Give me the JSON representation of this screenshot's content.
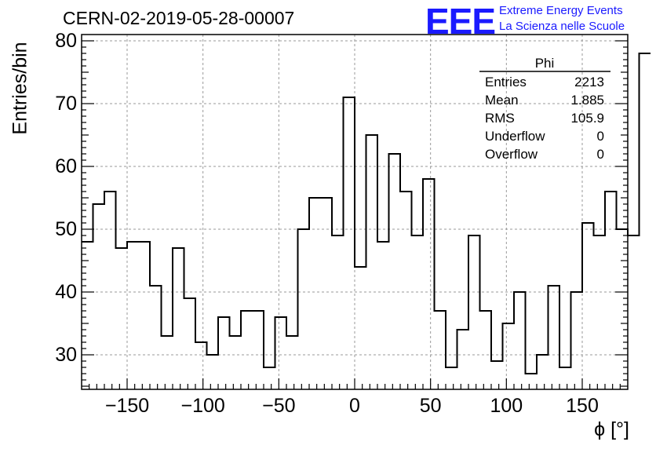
{
  "header": {
    "title": "CERN-02-2019-05-28-00007",
    "logo": "EEE",
    "logo_line1": "Extreme Energy Events",
    "logo_line2": "La Scienza nelle Scuole"
  },
  "stats": {
    "title": "Phi",
    "rows": [
      {
        "label": "Entries",
        "value": "2213"
      },
      {
        "label": "Mean",
        "value": "1.885"
      },
      {
        "label": "RMS",
        "value": "105.9"
      },
      {
        "label": "Underflow",
        "value": "0"
      },
      {
        "label": "Overflow",
        "value": "0"
      }
    ]
  },
  "chart_data": {
    "type": "bar",
    "subtype": "histogram",
    "title": "CERN-02-2019-05-28-00007",
    "xlabel": "ϕ [°]",
    "ylabel": "Entries/bin",
    "xlim": [
      -180,
      180
    ],
    "ylim": [
      24.5,
      81
    ],
    "bin_width": 7.5,
    "bin_edges_start": -180,
    "values": [
      48,
      54,
      56,
      47,
      48,
      48,
      41,
      33,
      47,
      39,
      32,
      30,
      36,
      33,
      37,
      37,
      28,
      36,
      33,
      50,
      55,
      55,
      49,
      71,
      44,
      65,
      48,
      62,
      56,
      49,
      58,
      37,
      28,
      34,
      49,
      37,
      29,
      35,
      40,
      27,
      30,
      41,
      28,
      40,
      51,
      49,
      56,
      50,
      49,
      78
    ],
    "xticks": [
      -150,
      -100,
      -50,
      0,
      50,
      100,
      150
    ],
    "xtick_labels": [
      "−150",
      "−100",
      "−50",
      "0",
      "50",
      "100",
      "150"
    ],
    "yticks": [
      30,
      40,
      50,
      60,
      70,
      80
    ],
    "ytick_labels": [
      "30",
      "40",
      "50",
      "60",
      "70",
      "80"
    ],
    "grid": true,
    "line_color": "#000000",
    "grid_color": "#999999"
  }
}
